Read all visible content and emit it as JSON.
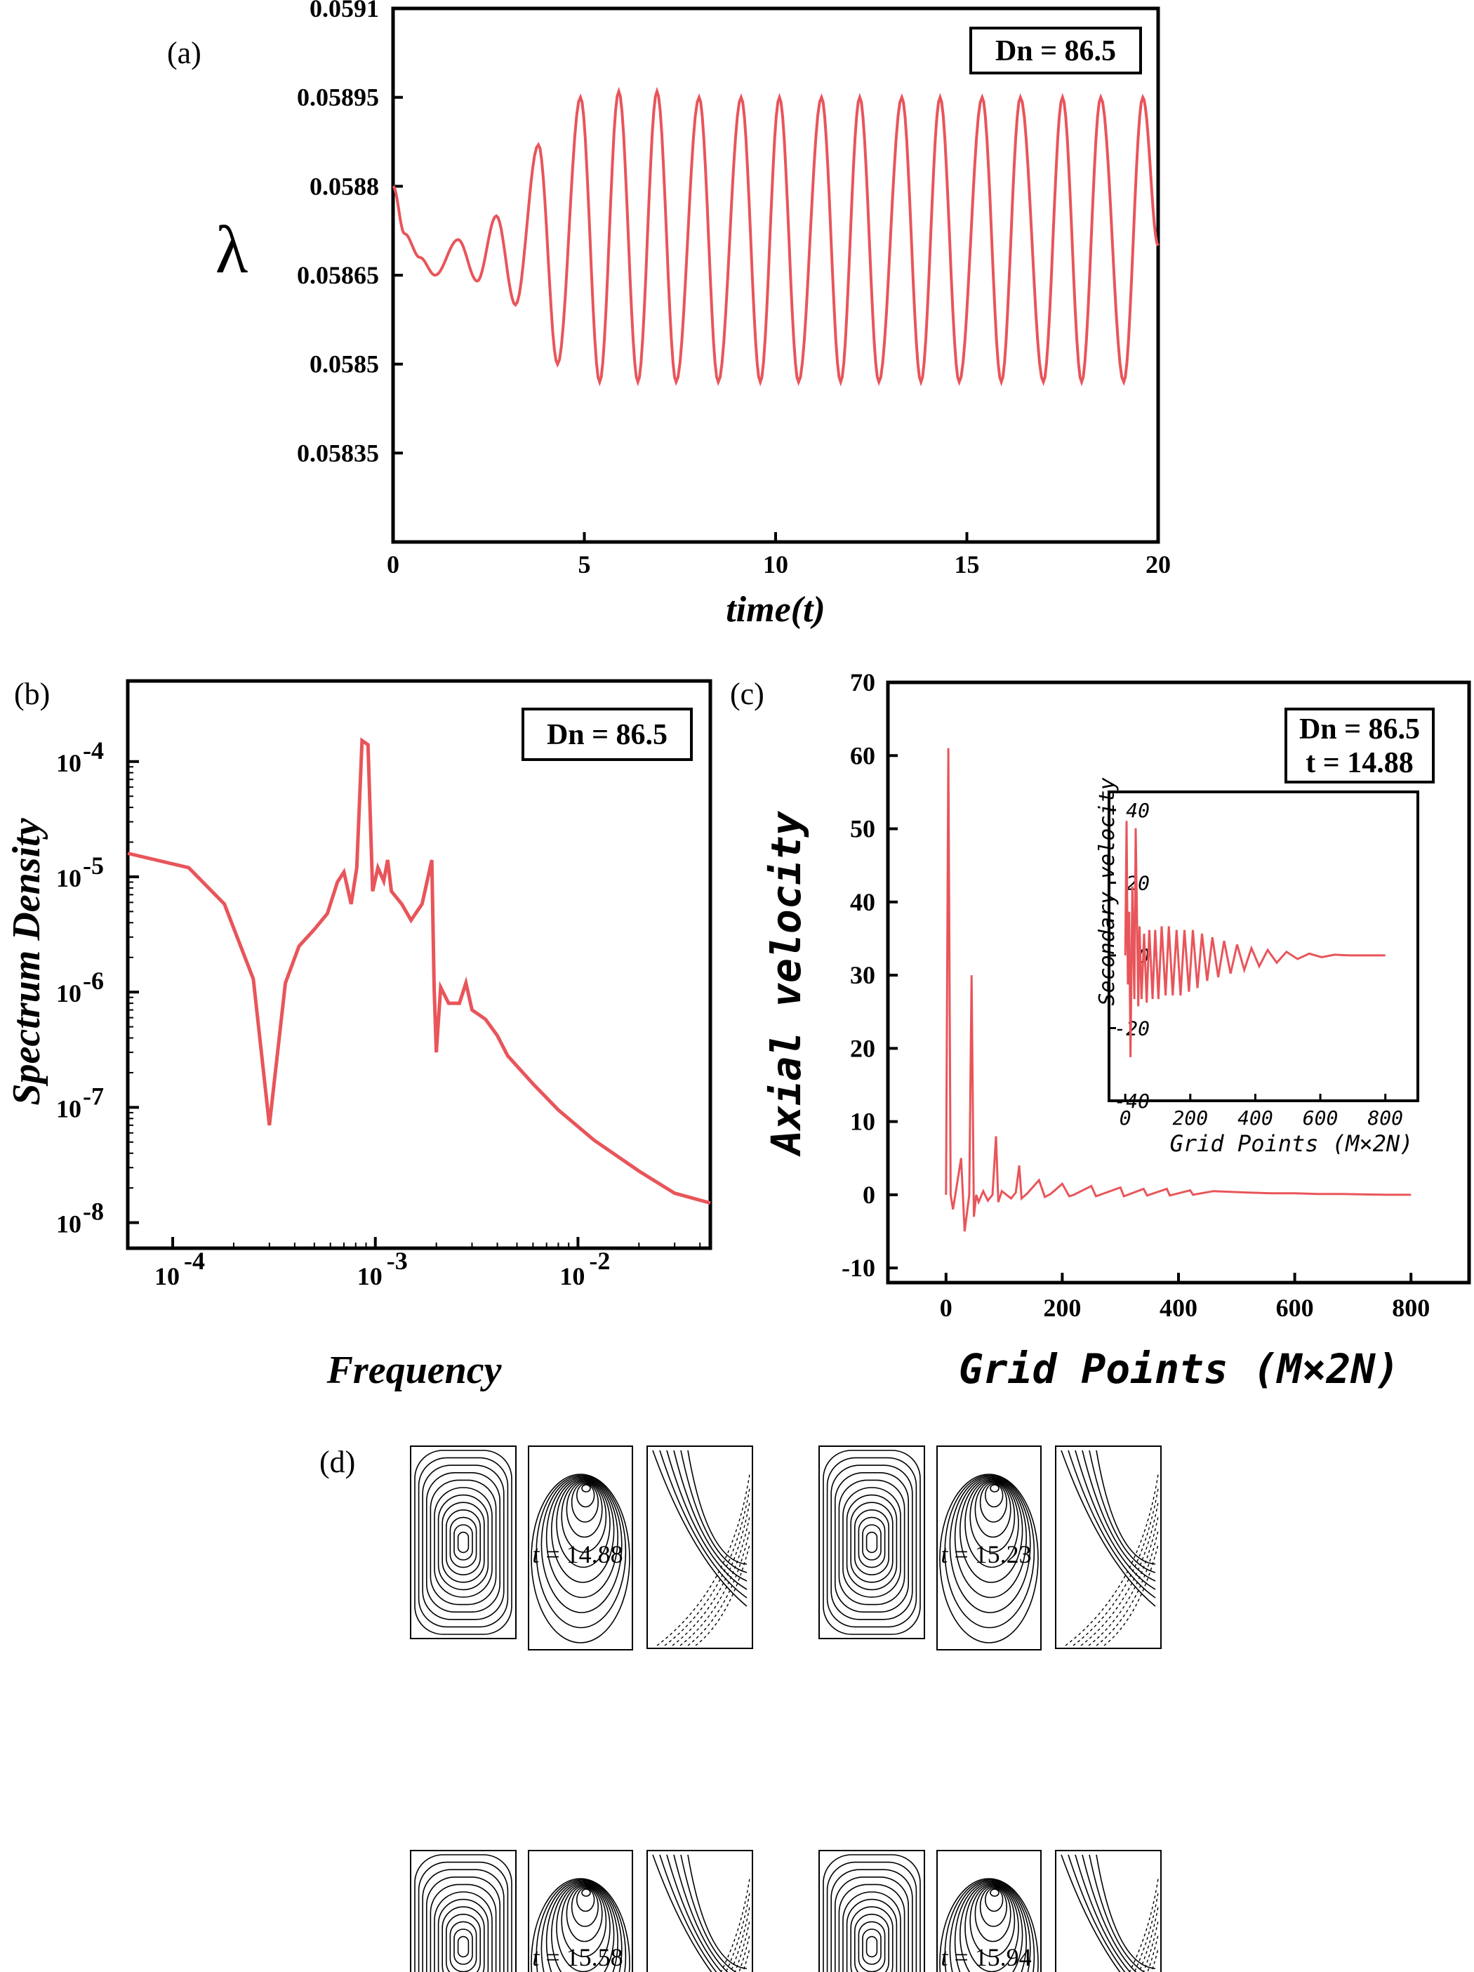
{
  "series_color": "#e8555a",
  "panels": {
    "a": {
      "letter": "(a)"
    },
    "b": {
      "letter": "(b)"
    },
    "c": {
      "letter": "(c)"
    },
    "d": {
      "letter": "(d)"
    }
  },
  "chart_data": [
    {
      "id": "a",
      "type": "line",
      "xlabel": "time(t)",
      "ylabel": "λ",
      "annotation": "Dn = 86.5",
      "xlim": [
        0,
        20
      ],
      "ylim": [
        0.0582,
        0.0591
      ],
      "x_ticks": [
        "0",
        "5",
        "10",
        "15",
        "20"
      ],
      "y_ticks": [
        "0.05835",
        "0.0585",
        "0.05865",
        "0.0588",
        "0.05895",
        "0.0591"
      ],
      "grid": false,
      "series": [
        {
          "x": [
            0,
            0.3,
            0.7,
            1.1,
            1.7,
            2.2,
            2.7,
            3.2,
            3.8,
            4.3,
            4.9,
            5.4,
            5.9,
            6.4,
            6.9,
            7.4,
            8.0,
            8.5,
            9.1,
            9.6,
            10.1,
            10.6,
            11.2,
            11.7,
            12.2,
            12.7,
            13.3,
            13.8,
            14.3,
            14.8,
            15.4,
            15.9,
            16.4,
            17.0,
            17.5,
            18.0,
            18.5,
            19.1,
            19.6,
            20.0
          ],
          "y": [
            0.0588,
            0.05872,
            0.05868,
            0.05865,
            0.05871,
            0.05864,
            0.05875,
            0.0586,
            0.05887,
            0.0585,
            0.05895,
            0.05847,
            0.05896,
            0.05847,
            0.05896,
            0.05847,
            0.05895,
            0.05847,
            0.05895,
            0.05847,
            0.05895,
            0.05847,
            0.05895,
            0.05847,
            0.05895,
            0.05847,
            0.05895,
            0.05847,
            0.05895,
            0.05847,
            0.05895,
            0.05847,
            0.05895,
            0.05847,
            0.05895,
            0.05847,
            0.05895,
            0.05847,
            0.05895,
            0.0587
          ]
        }
      ]
    },
    {
      "id": "b",
      "type": "line",
      "xlabel": "Frequency",
      "ylabel": "Spectrum Density",
      "annotation": "Dn = 86.5",
      "xscale": "log",
      "yscale": "log",
      "xlim": [
        6e-05,
        0.045
      ],
      "ylim": [
        6e-09,
        0.0005
      ],
      "x_ticks": [
        "10-4",
        "10-3",
        "10-2"
      ],
      "y_ticks": [
        "10-8",
        "10-7",
        "10-6",
        "10-5",
        "10-4"
      ],
      "grid": false,
      "series": [
        {
          "x": [
            6e-05,
            0.00012,
            0.00018,
            0.00025,
            0.0003,
            0.00036,
            0.00042,
            0.0005,
            0.00058,
            0.00065,
            0.0007,
            0.00076,
            0.00081,
            0.00086,
            0.00092,
            0.00097,
            0.00103,
            0.0011,
            0.00115,
            0.0012,
            0.00135,
            0.0015,
            0.0017,
            0.0019,
            0.00195,
            0.002,
            0.0021,
            0.0023,
            0.0026,
            0.0028,
            0.003,
            0.0035,
            0.004,
            0.0045,
            0.006,
            0.008,
            0.012,
            0.02,
            0.03,
            0.045
          ],
          "y": [
            1.6e-05,
            1.2e-05,
            5.8e-06,
            1.3e-06,
            7e-08,
            1.2e-06,
            2.5e-06,
            3.5e-06,
            4.8e-06,
            9e-06,
            1.1e-05,
            5.8e-06,
            1.2e-05,
            0.000152,
            0.00014,
            7.5e-06,
            1.2e-05,
            9.2e-06,
            1.4e-05,
            7.5e-06,
            5.8e-06,
            4.2e-06,
            5.8e-06,
            1.4e-05,
            1.1e-06,
            3e-07,
            1.1e-06,
            8e-07,
            8e-07,
            1.2e-06,
            7e-07,
            5.8e-07,
            4.2e-07,
            2.8e-07,
            1.6e-07,
            9.5e-08,
            5.2e-08,
            2.8e-08,
            1.8e-08,
            1.48e-08
          ]
        }
      ]
    },
    {
      "id": "c",
      "type": "line",
      "xlabel": "Grid Points (M×2N)",
      "ylabel": "Axial velocity",
      "annotation": [
        "Dn = 86.5",
        "t = 14.88"
      ],
      "xlim": [
        -100,
        900
      ],
      "ylim": [
        -12,
        70
      ],
      "x_ticks": [
        "0",
        "200",
        "400",
        "600",
        "800"
      ],
      "y_ticks": [
        "-10",
        "0",
        "10",
        "20",
        "30",
        "40",
        "50",
        "60",
        "70"
      ],
      "grid": false,
      "series": [
        {
          "x": [
            0,
            4,
            8,
            12,
            18,
            26,
            32,
            40,
            44,
            48,
            52,
            56,
            64,
            72,
            80,
            86,
            90,
            96,
            104,
            112,
            120,
            126,
            130,
            140,
            160,
            170,
            180,
            200,
            212,
            220,
            250,
            258,
            300,
            306,
            340,
            346,
            380,
            385,
            420,
            425,
            460,
            520,
            560,
            600,
            640,
            680,
            720,
            760,
            800
          ],
          "y": [
            0,
            61,
            0,
            -2,
            1,
            5,
            -5,
            0,
            30,
            -3,
            0,
            -1,
            0.5,
            -0.8,
            0,
            8,
            -1,
            0.5,
            0,
            -0.5,
            0.3,
            4,
            -0.5,
            0.2,
            2,
            -0.3,
            0.1,
            1.5,
            -0.2,
            0,
            1.2,
            -0.2,
            1,
            -0.2,
            0.8,
            -0.1,
            0.8,
            -0.1,
            0.6,
            0,
            0.5,
            0.3,
            0.2,
            0.2,
            0.1,
            0.1,
            0.05,
            0,
            0
          ]
        }
      ],
      "inset": {
        "type": "line",
        "xlabel": "Grid Points (M×2N)",
        "ylabel": "Secondary velocity",
        "xlim": [
          -50,
          900
        ],
        "ylim": [
          -40,
          45
        ],
        "x_ticks": [
          "0",
          "200",
          "400",
          "600",
          "800"
        ],
        "y_ticks": [
          "-40",
          "-20",
          "0",
          "20",
          "40"
        ],
        "series": [
          {
            "x": [
              0,
              4,
              8,
              12,
              16,
              22,
              28,
              32,
              40,
              44,
              50,
              58,
              66,
              74,
              84,
              92,
              102,
              112,
              124,
              134,
              146,
              158,
              170,
              182,
              196,
              208,
              222,
              236,
              252,
              268,
              286,
              304,
              324,
              344,
              366,
              388,
              412,
              438,
              466,
              496,
              530,
              566,
              604,
              644,
              690,
              740,
              800
            ],
            "y": [
              0,
              37,
              -8,
              12,
              -28,
              19,
              -12,
              35,
              -14,
              8,
              -12,
              6,
              -13,
              7,
              -12,
              7,
              -12,
              8,
              -11,
              8,
              -11,
              7,
              -11,
              7,
              -10,
              7,
              -9,
              6,
              -7,
              5,
              -6,
              4,
              -5,
              3,
              -4,
              2,
              -3,
              1.5,
              -2,
              1,
              -1,
              0.5,
              -0.5,
              0.2,
              0,
              0,
              0
            ]
          }
        ]
      }
    }
  ],
  "contour_groups": [
    {
      "time_prefix": "t",
      "time_value": " = 14.88"
    },
    {
      "time_prefix": "t",
      "time_value": " = 15.23"
    },
    {
      "time_prefix": "t",
      "time_value": " = 15.58"
    },
    {
      "time_prefix": "t",
      "time_value": " = 15.94"
    }
  ]
}
